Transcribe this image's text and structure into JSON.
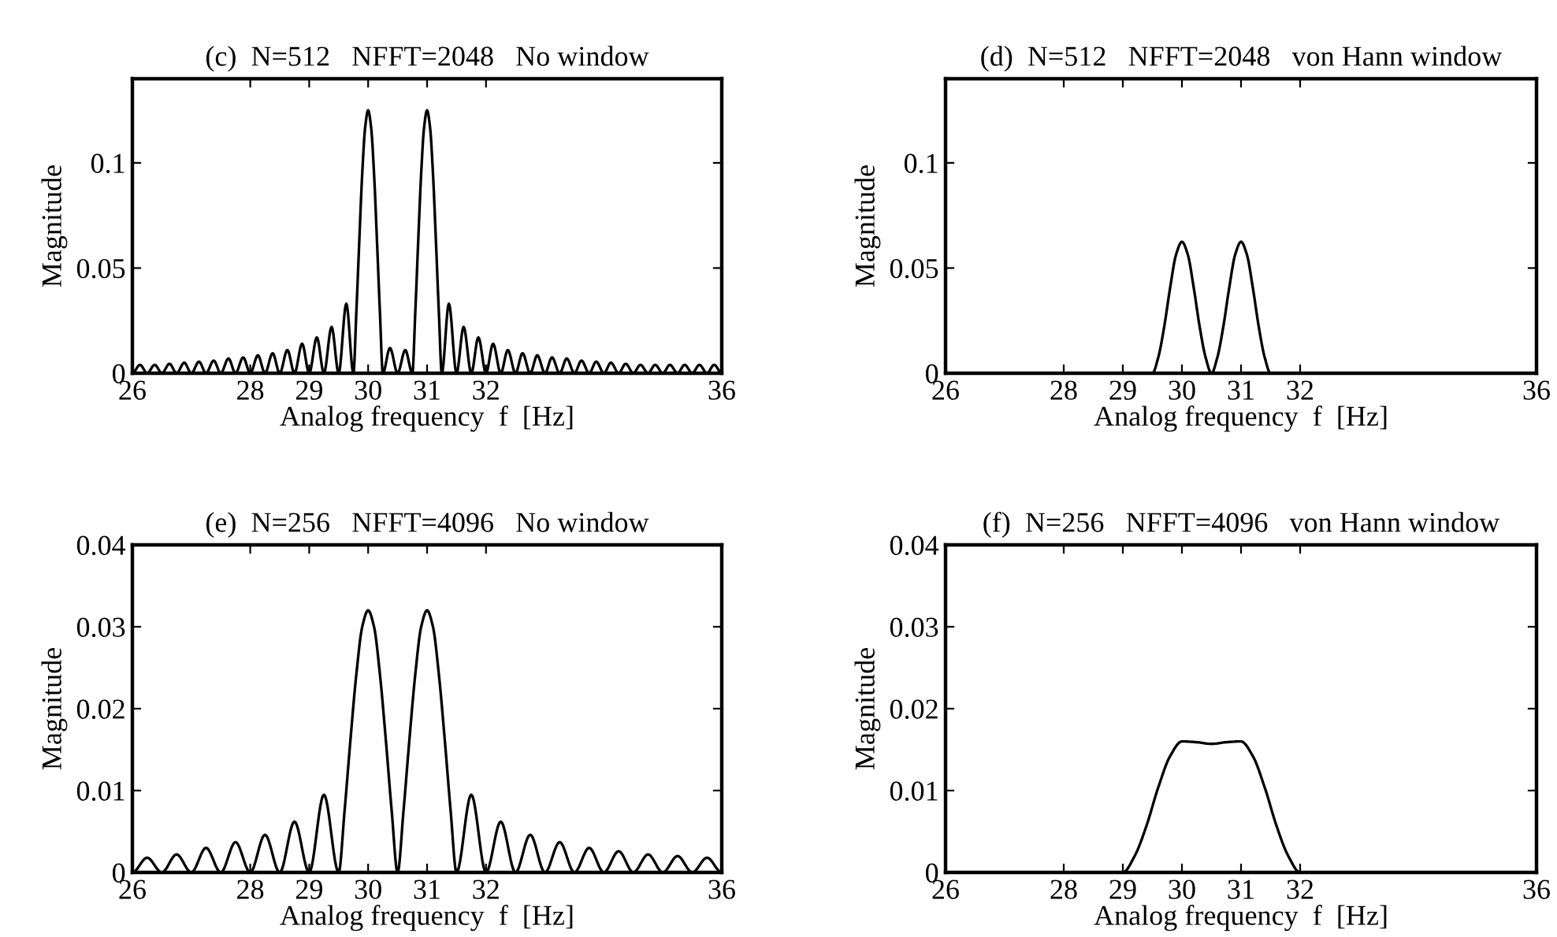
{
  "chart_data": [
    {
      "type": "line",
      "title": "(c)  N=512   NFFT=2048   No window",
      "xlabel": "Analog frequency  f  [Hz]",
      "ylabel": "Magnitude",
      "xlim": [
        26,
        36
      ],
      "ylim": [
        0,
        0.14
      ],
      "xticks": [
        26,
        28,
        29,
        30,
        31,
        32,
        36
      ],
      "yticks": [
        0,
        0.05,
        0.1
      ],
      "x": [
        26.0,
        26.13,
        26.25,
        26.38,
        26.5,
        26.63,
        26.75,
        26.88,
        27.0,
        27.13,
        27.25,
        27.38,
        27.5,
        27.63,
        27.75,
        27.88,
        28.0,
        28.13,
        28.25,
        28.38,
        28.5,
        28.63,
        28.75,
        28.88,
        29.0,
        29.13,
        29.25,
        29.38,
        29.5,
        29.63,
        29.75,
        29.8,
        29.85,
        29.9,
        29.95,
        30.0,
        30.05,
        30.1,
        30.15,
        30.2,
        30.25,
        30.37,
        30.5,
        30.63,
        30.75,
        30.8,
        30.85,
        30.9,
        30.95,
        31.0,
        31.05,
        31.1,
        31.15,
        31.2,
        31.25,
        31.37,
        31.5,
        31.62,
        31.75,
        31.87,
        32.0,
        32.12,
        32.25,
        32.37,
        32.5,
        32.62,
        32.75,
        32.87,
        33.0,
        33.12,
        33.25,
        33.37,
        33.5,
        33.62,
        33.75,
        33.87,
        34.0,
        34.12,
        34.25,
        34.37,
        34.5,
        34.62,
        34.75,
        34.87,
        35.0,
        35.12,
        35.25,
        35.37,
        35.5,
        35.62,
        35.75,
        35.87,
        36.0
      ],
      "series": [
        {
          "color": "#000000",
          "values": [
            0,
            0.004,
            0,
            0.004,
            0,
            0.0045,
            0,
            0.005,
            0,
            0.0055,
            0,
            0.006,
            0,
            0.007,
            0,
            0.0075,
            0,
            0.0085,
            0,
            0.0095,
            0,
            0.011,
            0,
            0.014,
            0,
            0.017,
            0,
            0.022,
            0,
            0.033,
            0,
            0.029,
            0.063,
            0.095,
            0.117,
            0.125,
            0.117,
            0.095,
            0.063,
            0.029,
            0,
            0.012,
            0,
            0.011,
            0,
            0.029,
            0.063,
            0.095,
            0.117,
            0.125,
            0.117,
            0.095,
            0.063,
            0.029,
            0,
            0.033,
            0,
            0.022,
            0,
            0.017,
            0,
            0.014,
            0,
            0.011,
            0,
            0.0095,
            0,
            0.0085,
            0,
            0.0075,
            0,
            0.007,
            0,
            0.006,
            0,
            0.0055,
            0,
            0.005,
            0,
            0.0045,
            0,
            0.004,
            0,
            0.004,
            0,
            0.004,
            0,
            0.004,
            0,
            0.004,
            0,
            0.004,
            0
          ]
        }
      ]
    },
    {
      "type": "line",
      "title": "(d)  N=512   NFFT=2048   von Hann window",
      "xlabel": "Analog frequency  f  [Hz]",
      "ylabel": "Magnitude",
      "xlim": [
        26,
        36
      ],
      "ylim": [
        0,
        0.14
      ],
      "xticks": [
        26,
        28,
        29,
        30,
        31,
        32,
        36
      ],
      "yticks": [
        0,
        0.05,
        0.1
      ],
      "x": [
        26.0,
        29.5,
        29.6,
        29.7,
        29.8,
        29.9,
        30.0,
        30.1,
        30.2,
        30.3,
        30.4,
        30.5,
        30.6,
        30.7,
        30.8,
        30.9,
        31.0,
        31.1,
        31.2,
        31.3,
        31.4,
        31.5,
        36.0
      ],
      "series": [
        {
          "color": "#000000",
          "values": [
            0,
            0,
            0.0076,
            0.0221,
            0.0406,
            0.0563,
            0.0625,
            0.0563,
            0.0406,
            0.0221,
            0.0076,
            0,
            0.0076,
            0.0221,
            0.0406,
            0.0563,
            0.0625,
            0.0563,
            0.0406,
            0.0221,
            0.0076,
            0,
            0
          ]
        }
      ]
    },
    {
      "type": "line",
      "title": "(e)  N=256   NFFT=4096   No window",
      "xlabel": "Analog frequency  f  [Hz]",
      "ylabel": "Magnitude",
      "xlim": [
        26,
        36
      ],
      "ylim": [
        0,
        0.04
      ],
      "xticks": [
        26,
        28,
        29,
        30,
        31,
        32,
        36
      ],
      "yticks": [
        0,
        0.01,
        0.02,
        0.03,
        0.04
      ],
      "x": [
        26.0,
        26.25,
        26.5,
        26.75,
        27.0,
        27.25,
        27.5,
        27.75,
        28.0,
        28.25,
        28.5,
        28.75,
        29.0,
        29.25,
        29.5,
        29.6,
        29.7,
        29.8,
        29.9,
        30.0,
        30.1,
        30.2,
        30.3,
        30.4,
        30.5,
        30.6,
        30.7,
        30.8,
        30.9,
        31.0,
        31.1,
        31.2,
        31.3,
        31.4,
        31.5,
        31.75,
        32.0,
        32.25,
        32.5,
        32.75,
        33.0,
        33.25,
        33.5,
        33.75,
        34.0,
        34.25,
        34.5,
        34.75,
        35.0,
        35.25,
        35.5,
        35.75,
        36.0
      ],
      "series": [
        {
          "color": "#000000",
          "values": [
            0,
            0.0018,
            0,
            0.0022,
            0,
            0.003,
            0,
            0.0037,
            0,
            0.0046,
            0,
            0.0062,
            0,
            0.0095,
            0,
            0.0075,
            0.0162,
            0.0242,
            0.03,
            0.032,
            0.03,
            0.0242,
            0.0162,
            0.0075,
            0,
            0.0075,
            0.0162,
            0.0242,
            0.03,
            0.032,
            0.03,
            0.0242,
            0.0162,
            0.0075,
            0,
            0.0095,
            0,
            0.0062,
            0,
            0.0046,
            0,
            0.0037,
            0,
            0.003,
            0,
            0.0026,
            0,
            0.0022,
            0,
            0.002,
            0,
            0.0018,
            0
          ]
        }
      ]
    },
    {
      "type": "line",
      "title": "(f)  N=256   NFFT=4096   von Hann window",
      "xlabel": "Analog frequency  f  [Hz]",
      "ylabel": "Magnitude",
      "xlim": [
        26,
        36
      ],
      "ylim": [
        0,
        0.04
      ],
      "xticks": [
        26,
        28,
        29,
        30,
        31,
        32,
        36
      ],
      "yticks": [
        0,
        0.01,
        0.02,
        0.03,
        0.04
      ],
      "x": [
        26.0,
        29.0,
        29.2,
        29.4,
        29.6,
        29.8,
        30.0,
        30.25,
        30.5,
        30.75,
        31.0,
        31.2,
        31.4,
        31.6,
        31.8,
        32.0,
        36.0
      ],
      "series": [
        {
          "color": "#000000",
          "values": [
            0,
            0,
            0.002,
            0.0057,
            0.0104,
            0.0142,
            0.016,
            0.0159,
            0.0157,
            0.0159,
            0.016,
            0.0142,
            0.0104,
            0.0057,
            0.002,
            0,
            0
          ]
        }
      ]
    }
  ]
}
